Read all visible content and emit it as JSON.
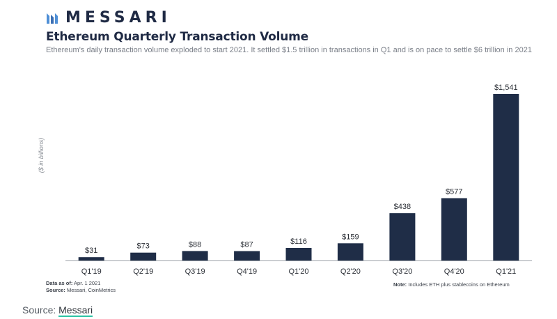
{
  "brand": {
    "name": "MESSARI"
  },
  "header": {
    "title": "Ethereum Quarterly Transaction Volume",
    "subtitle": "Ethereum's daily transaction volume exploded to start 2021. It settled $1.5 trillion in transactions in Q1 and is on pace to settle $6 trillion in 2021"
  },
  "chart_data": {
    "type": "bar",
    "title": "Ethereum Quarterly Transaction Volume",
    "ylabel": "($ in billions)",
    "xlabel": "",
    "categories": [
      "Q1'19",
      "Q2'19",
      "Q3'19",
      "Q4'19",
      "Q1'20",
      "Q2'20",
      "Q3'20",
      "Q4'20",
      "Q1'21"
    ],
    "values": [
      31,
      73,
      88,
      87,
      116,
      159,
      438,
      577,
      1541
    ],
    "data_labels": [
      "$31",
      "$73",
      "$88",
      "$87",
      "$116",
      "$159",
      "$438",
      "$577",
      "$1,541"
    ],
    "ylim": [
      0,
      1541
    ],
    "grid": false,
    "legend": "none",
    "bar_color": "#1f2d47"
  },
  "footer": {
    "data_as_of_label": "Data as of:",
    "data_as_of_value": "Apr. 1 2021",
    "source_label": "Source:",
    "source_value": "Messari, CoinMetrics",
    "note_label": "Note:",
    "note_value": "Includes ETH plus stablecoins on Ethereum"
  },
  "caption": {
    "prefix": "Source:",
    "link_text": "Messari"
  },
  "colors": {
    "accent": "#2ec4a5",
    "navy": "#1f2d47"
  }
}
